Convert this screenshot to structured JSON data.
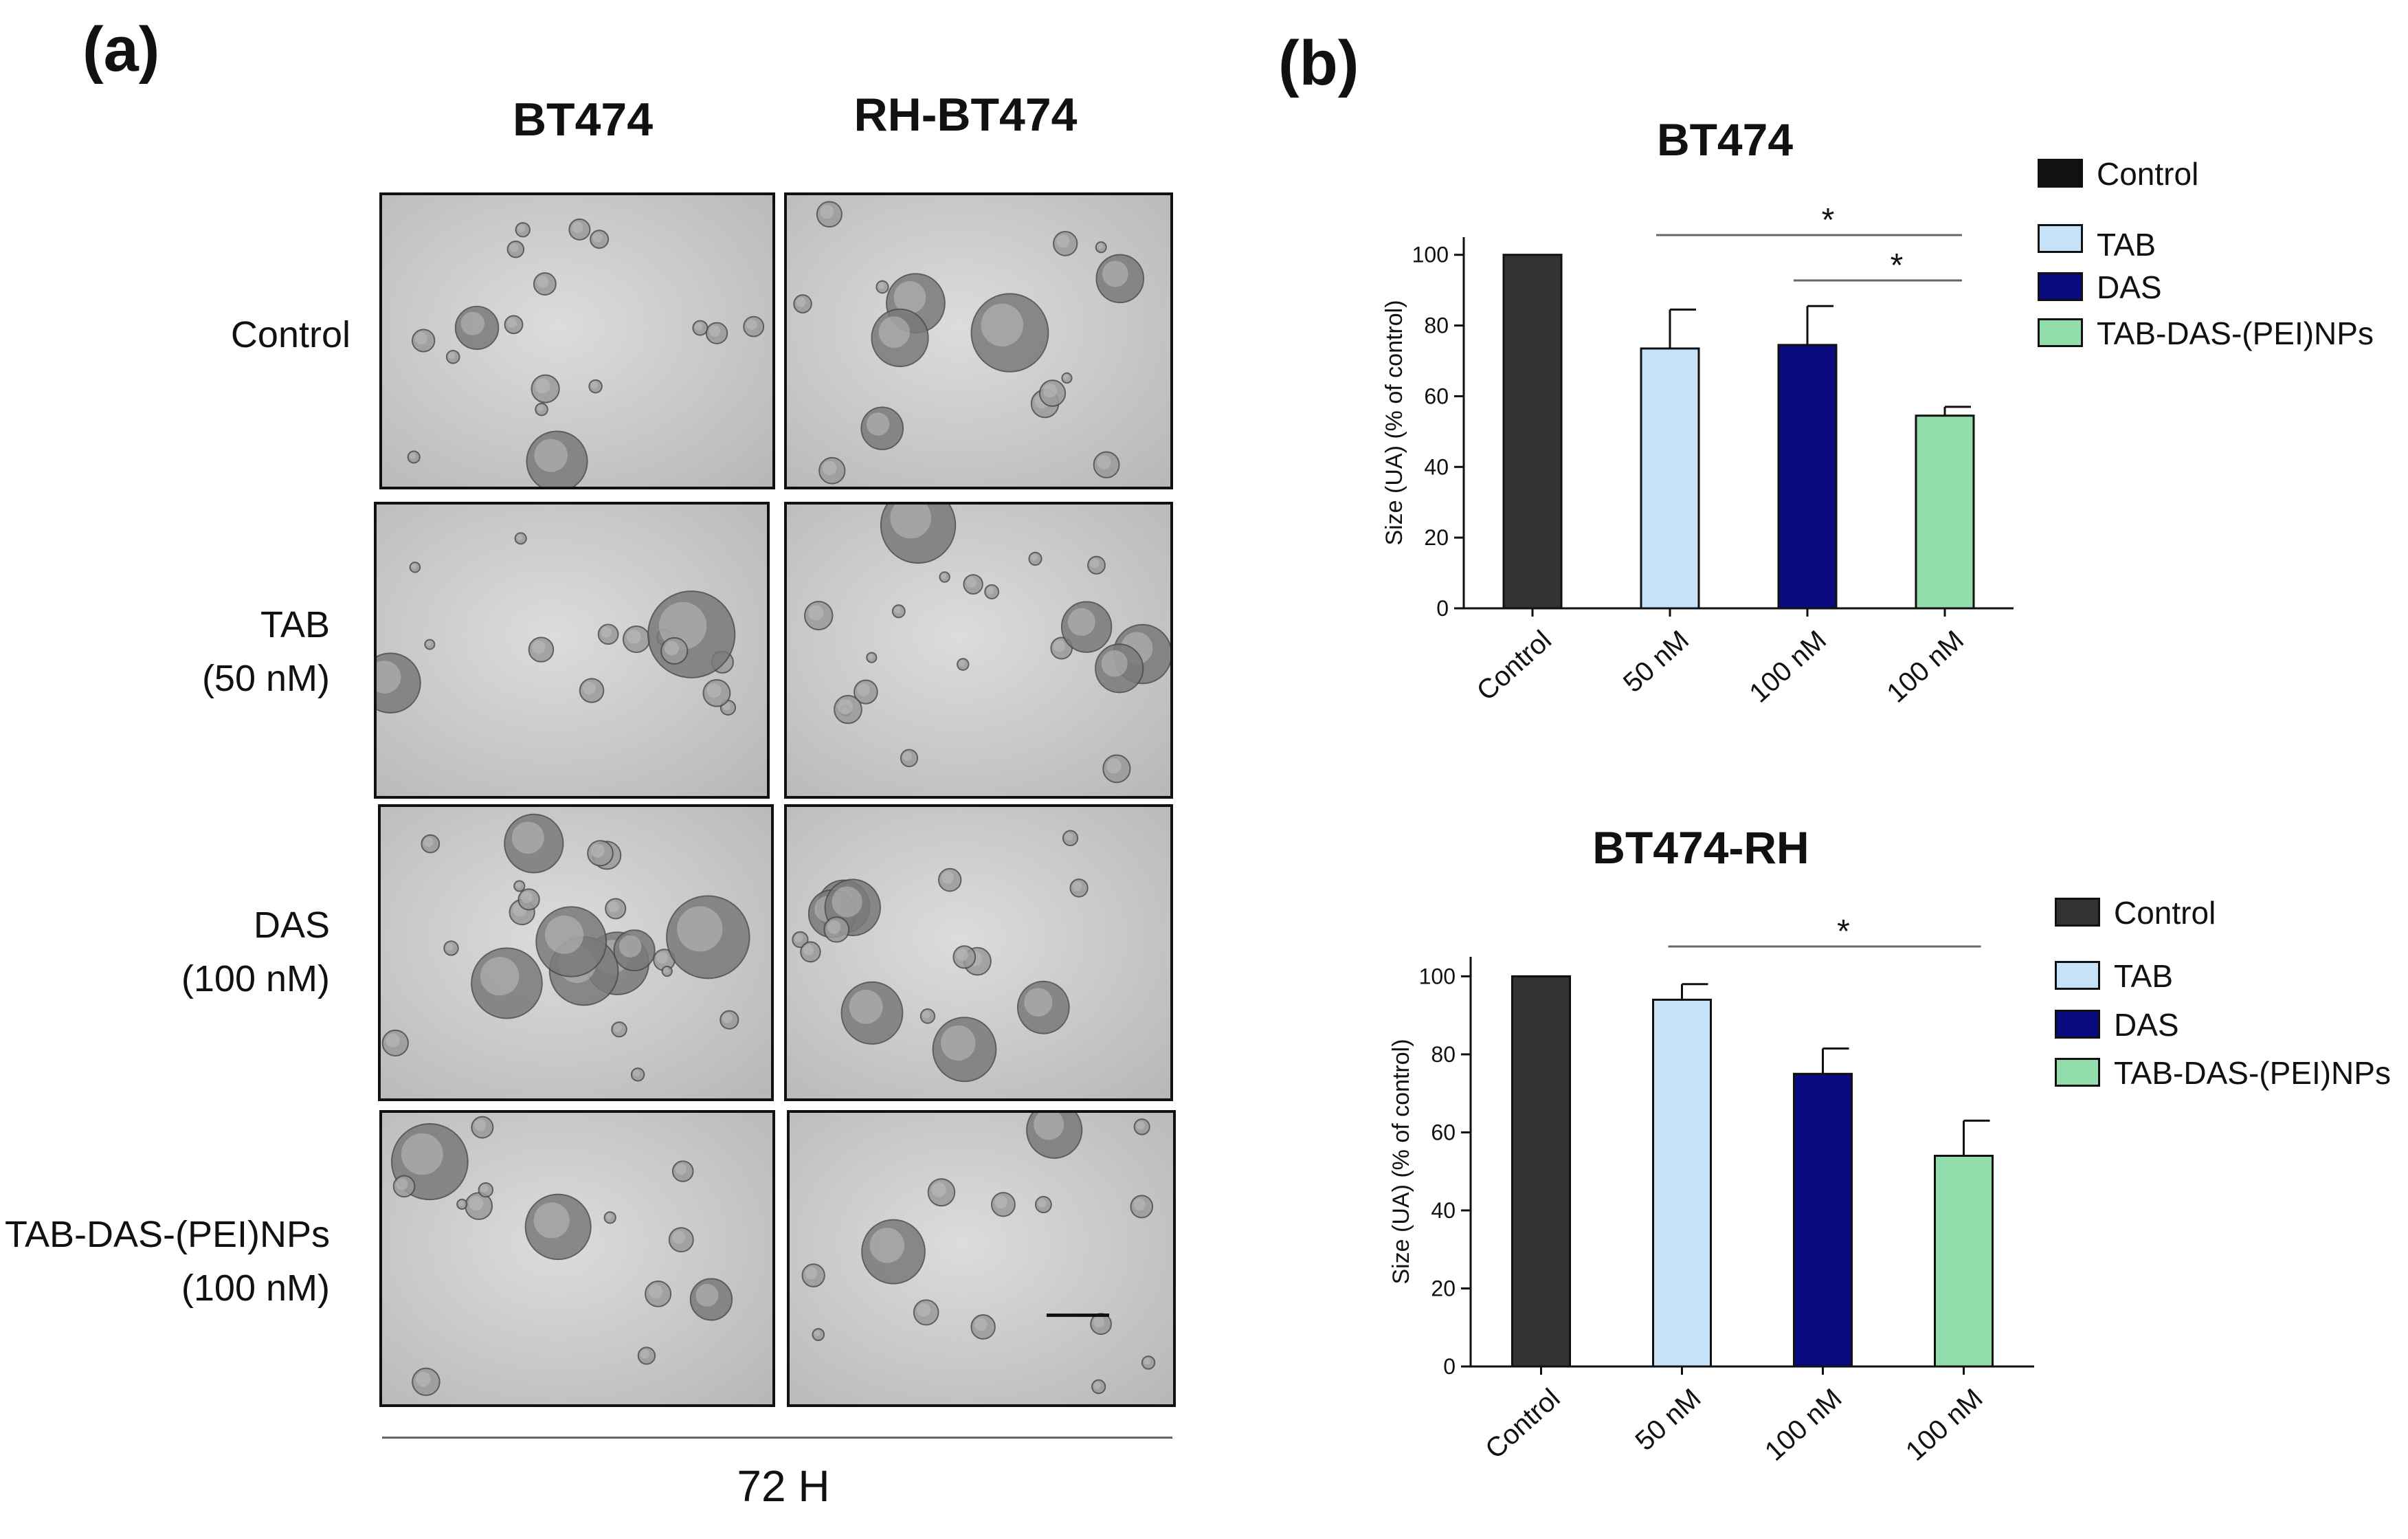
{
  "panel_a": {
    "letter": "(a)",
    "columns": [
      "BT474",
      "RH-BT474"
    ],
    "rows": [
      {
        "label": "Control"
      },
      {
        "label": "TAB\n(50 nM)"
      },
      {
        "label": "DAS\n(100 nM)"
      },
      {
        "label": "TAB-DAS-(PEI)NPs\n(100 nM)"
      }
    ],
    "time_label": "72 H"
  },
  "panel_b": {
    "letter": "(b)"
  },
  "chart_data": [
    {
      "type": "bar",
      "title": "BT474",
      "ylabel": "Size (UA) (% of control)",
      "xlabel": "",
      "categories": [
        "Control",
        "50 nM",
        "100 nM",
        "100 nM"
      ],
      "values": [
        100,
        73.5,
        74.5,
        54.5
      ],
      "errors": [
        0,
        11,
        11,
        2.5
      ],
      "ylim": [
        0,
        105
      ],
      "yticks": [
        0,
        20,
        40,
        60,
        80,
        100
      ],
      "colors": [
        "#333333",
        "#c6e2f8",
        "#0a0a80",
        "#93dcab"
      ],
      "legend": [
        "Control",
        "TAB",
        "DAS",
        "TAB-DAS-(PEI)NPs"
      ],
      "legend_placement": "right",
      "significance": [
        {
          "from": 1,
          "to": 3,
          "label": "*"
        },
        {
          "from": 2,
          "to": 3,
          "label": "*"
        }
      ]
    },
    {
      "type": "bar",
      "title": "BT474-RH",
      "ylabel": "Size (UA) (% of control)",
      "xlabel": "",
      "categories": [
        "Control",
        "50 nM",
        "100 nM",
        "100 nM"
      ],
      "values": [
        100,
        94,
        75,
        54
      ],
      "errors": [
        0,
        4,
        6.5,
        9
      ],
      "ylim": [
        0,
        105
      ],
      "yticks": [
        0,
        20,
        40,
        60,
        80,
        100
      ],
      "colors": [
        "#333333",
        "#c6e2f8",
        "#0a0a80",
        "#93dcab"
      ],
      "legend": [
        "Control",
        "TAB",
        "DAS",
        "TAB-DAS-(PEI)NPs"
      ],
      "legend_placement": "right",
      "significance": [
        {
          "from": 1,
          "to": 3,
          "label": "*"
        }
      ]
    }
  ]
}
